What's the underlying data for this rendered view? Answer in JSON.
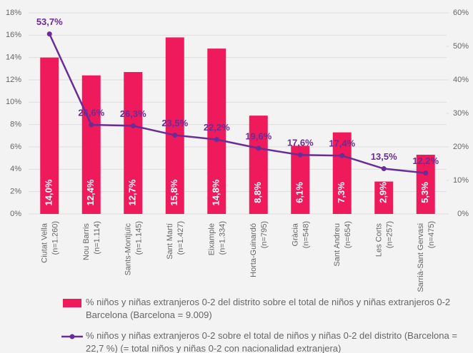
{
  "chart_data": {
    "type": "bar_line",
    "categories": [
      "Ciutat Vella (n=1.260)",
      "Nou Barris (n=1.114)",
      "Sants-Montjuïc (n=1.145)",
      "Sant Martí (n=1.427)",
      "Eixample (n=1.334)",
      "Horta-Guinardó (n=795)",
      "Gràcia (n=548)",
      "Sant Andreu (n=654)",
      "Les Corts (n=257)",
      "Sarrià-Sant Gervasi (n=475)"
    ],
    "series": [
      {
        "name": "% niños y niñas extranjeros 0-2 del distrito sobre el total de niños y niñas extranjeros 0-2 Barcelona (Barcelona = 9.009)",
        "type": "bar",
        "color": "#ee1a5b",
        "axis": "y",
        "values": [
          14.0,
          12.4,
          12.7,
          15.8,
          14.8,
          8.8,
          6.1,
          7.3,
          2.9,
          5.3
        ],
        "value_labels": [
          "14,0%",
          "12,4%",
          "12,7%",
          "15,8%",
          "14,8%",
          "8,8%",
          "6,1%",
          "7,3%",
          "2,9%",
          "5,3%"
        ]
      },
      {
        "name": "% niños y niñas extranjeros 0-2 sobre el total de niños y niñas 0-2 del distrito (Barcelona = 22,7 %) (= total niños y niñas 0-2 con nacionalidad extranjera)",
        "type": "line",
        "color": "#6a2c96",
        "axis": "y2",
        "values": [
          53.7,
          26.6,
          26.3,
          23.5,
          22.2,
          19.6,
          17.6,
          17.4,
          13.5,
          12.2
        ],
        "value_labels": [
          "53,7%",
          "26,6%",
          "26,3%",
          "23,5%",
          "22,2%",
          "19,6%",
          "17,6%",
          "17,4%",
          "13,5%",
          "12,2%"
        ]
      }
    ],
    "ylim": [
      0,
      18
    ],
    "yticks": [
      {
        "value": 0,
        "label": "0%"
      },
      {
        "value": 2,
        "label": "2%"
      },
      {
        "value": 4,
        "label": "4%"
      },
      {
        "value": 6,
        "label": "6%"
      },
      {
        "value": 8,
        "label": "8%"
      },
      {
        "value": 10,
        "label": "10%"
      },
      {
        "value": 12,
        "label": "12%"
      },
      {
        "value": 14,
        "label": "14%"
      },
      {
        "value": 16,
        "label": "16%"
      },
      {
        "value": 18,
        "label": "18%"
      }
    ],
    "y2lim": [
      0,
      60
    ],
    "y2ticks": [
      {
        "value": 0,
        "label": "0%"
      },
      {
        "value": 10,
        "label": "10%"
      },
      {
        "value": 20,
        "label": "20%"
      },
      {
        "value": 30,
        "label": "30%"
      },
      {
        "value": 40,
        "label": "40%"
      },
      {
        "value": 50,
        "label": "50%"
      },
      {
        "value": 60,
        "label": "60%"
      }
    ],
    "grid": true
  }
}
